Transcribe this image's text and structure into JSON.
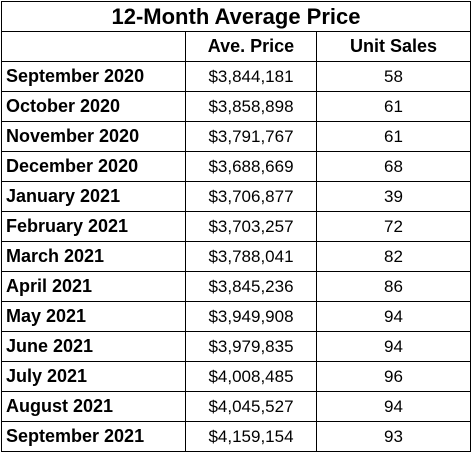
{
  "table": {
    "title": "12-Month Average Price",
    "headers": {
      "month": "",
      "price": "Ave. Price",
      "units": "Unit Sales"
    },
    "rows": [
      {
        "month": "September 2020",
        "price": "$3,844,181",
        "units": "58"
      },
      {
        "month": "October 2020",
        "price": "$3,858,898",
        "units": "61"
      },
      {
        "month": "November 2020",
        "price": "$3,791,767",
        "units": "61"
      },
      {
        "month": "December 2020",
        "price": "$3,688,669",
        "units": "68"
      },
      {
        "month": "January 2021",
        "price": "$3,706,877",
        "units": "39"
      },
      {
        "month": "February 2021",
        "price": "$3,703,257",
        "units": "72"
      },
      {
        "month": "March 2021",
        "price": "$3,788,041",
        "units": "82"
      },
      {
        "month": "April 2021",
        "price": "$3,845,236",
        "units": "86"
      },
      {
        "month": "May 2021",
        "price": "$3,949,908",
        "units": "94"
      },
      {
        "month": "June 2021",
        "price": "$3,979,835",
        "units": "94"
      },
      {
        "month": "July 2021",
        "price": "$4,008,485",
        "units": "96"
      },
      {
        "month": "August 2021",
        "price": "$4,045,527",
        "units": "94"
      },
      {
        "month": "September 2021",
        "price": "$4,159,154",
        "units": "93"
      }
    ]
  }
}
